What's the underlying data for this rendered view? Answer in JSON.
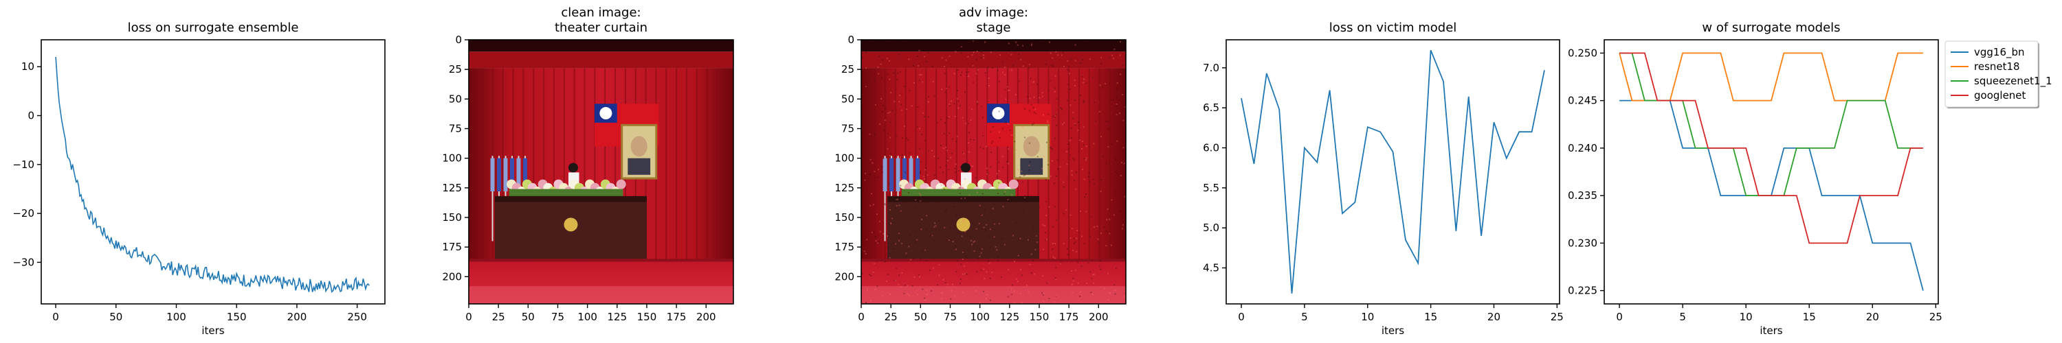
{
  "figure": {
    "panels": [
      {
        "id": "p1",
        "title": "loss on surrogate ensemble",
        "xlabel": "iters"
      },
      {
        "id": "p2",
        "title_line1": "clean image:",
        "title_line2": "theater curtain"
      },
      {
        "id": "p3",
        "title_line1": "adv image:",
        "title_line2": "stage"
      },
      {
        "id": "p4",
        "title": "loss on victim model",
        "xlabel": "iters"
      },
      {
        "id": "p5",
        "title": "w of surrogate models",
        "xlabel": "iters"
      }
    ]
  },
  "colors": {
    "vgg16_bn": "#1f77b4",
    "resnet18": "#ff7f0e",
    "squeezenet1_1": "#2ca02c",
    "googlenet": "#d62728",
    "curtain": "#b3121d",
    "curtain_dark": "#6e070d",
    "stage_floor": "#d8263a",
    "podium": "#4a1d1a"
  },
  "chart_data": [
    {
      "type": "line",
      "title": "loss on surrogate ensemble",
      "xlabel": "iters",
      "ylabel": "",
      "xlim": [
        -12,
        273
      ],
      "ylim": [
        -38.5,
        15.5
      ],
      "xticks": [
        0,
        50,
        100,
        150,
        200,
        250
      ],
      "yticks": [
        10,
        0,
        -10,
        -20,
        -30
      ],
      "series": [
        {
          "color": "#1f77b4",
          "trend": {
            "x_start": 0,
            "x_end": 260,
            "start": 12,
            "end": -35,
            "floor": -35.5,
            "decay": 33
          },
          "noise_amplitude": 1.4,
          "points": [
            [
              0,
              12
            ],
            [
              1,
              8.5
            ],
            [
              2,
              5
            ],
            [
              3,
              2.5
            ],
            [
              5,
              -1
            ],
            [
              8,
              -5
            ],
            [
              10,
              -8
            ],
            [
              15,
              -11.5
            ],
            [
              20,
              -15.5
            ],
            [
              25,
              -19
            ],
            [
              30,
              -21
            ],
            [
              40,
              -24
            ],
            [
              50,
              -26.5
            ],
            [
              60,
              -27.5
            ],
            [
              75,
              -29
            ],
            [
              100,
              -31.5
            ],
            [
              125,
              -32
            ],
            [
              150,
              -33.5
            ],
            [
              175,
              -34
            ],
            [
              200,
              -34.5
            ],
            [
              225,
              -35
            ],
            [
              255,
              -34
            ],
            [
              258,
              -35
            ],
            [
              260,
              -36
            ]
          ]
        }
      ]
    },
    {
      "type": "image",
      "title": "clean image:\ntheater curtain",
      "xticks": [
        0,
        25,
        50,
        75,
        100,
        125,
        150,
        175,
        200
      ],
      "yticks": [
        0,
        25,
        50,
        75,
        100,
        125,
        150,
        175,
        200
      ],
      "xlim": [
        0,
        223
      ],
      "ylim": [
        223,
        0
      ]
    },
    {
      "type": "image",
      "title": "adv image:\nstage",
      "xticks": [
        0,
        25,
        50,
        75,
        100,
        125,
        150,
        175,
        200
      ],
      "yticks": [
        0,
        25,
        50,
        75,
        100,
        125,
        150,
        175,
        200
      ],
      "xlim": [
        0,
        223
      ],
      "ylim": [
        223,
        0
      ]
    },
    {
      "type": "line",
      "title": "loss on victim model",
      "xlabel": "iters",
      "ylabel": "",
      "xlim": [
        -1.2,
        25.2
      ],
      "ylim": [
        4.05,
        7.35
      ],
      "xticks": [
        0,
        5,
        10,
        15,
        20,
        25
      ],
      "yticks": [
        4.5,
        5.0,
        5.5,
        6.0,
        6.5,
        7.0
      ],
      "series": [
        {
          "color": "#1f77b4",
          "x": [
            0,
            1,
            2,
            3,
            4,
            5,
            6,
            7,
            8,
            9,
            10,
            11,
            12,
            13,
            14,
            15,
            16,
            17,
            18,
            19,
            20,
            21,
            22,
            23,
            24
          ],
          "y": [
            6.62,
            5.8,
            6.93,
            6.48,
            4.18,
            6.0,
            5.82,
            6.72,
            5.18,
            5.32,
            6.26,
            6.2,
            5.95,
            4.85,
            4.56,
            7.22,
            6.83,
            4.96,
            6.64,
            4.9,
            6.32,
            5.87,
            6.2,
            6.2,
            6.97
          ]
        }
      ]
    },
    {
      "type": "line",
      "title": "w of surrogate models",
      "xlabel": "iters",
      "ylabel": "",
      "xlim": [
        -1.2,
        25.2
      ],
      "ylim": [
        0.2236,
        0.2514
      ],
      "xticks": [
        0,
        5,
        10,
        15,
        20,
        25
      ],
      "yticks": [
        0.225,
        0.23,
        0.235,
        0.24,
        0.245,
        0.25
      ],
      "legend": "outside upper right",
      "series": [
        {
          "name": "vgg16_bn",
          "color": "#1f77b4",
          "x": [
            0,
            1,
            2,
            3,
            4,
            5,
            6,
            7,
            8,
            9,
            10,
            11,
            12,
            13,
            14,
            15,
            16,
            17,
            18,
            19,
            20,
            21,
            22,
            23,
            24
          ],
          "y": [
            0.245,
            0.245,
            0.245,
            0.245,
            0.245,
            0.24,
            0.24,
            0.24,
            0.235,
            0.235,
            0.235,
            0.235,
            0.235,
            0.24,
            0.24,
            0.24,
            0.235,
            0.235,
            0.235,
            0.235,
            0.23,
            0.23,
            0.23,
            0.23,
            0.225
          ]
        },
        {
          "name": "resnet18",
          "color": "#ff7f0e",
          "x": [
            0,
            1,
            2,
            3,
            4,
            5,
            6,
            7,
            8,
            9,
            10,
            11,
            12,
            13,
            14,
            15,
            16,
            17,
            18,
            19,
            20,
            21,
            22,
            23,
            24
          ],
          "y": [
            0.25,
            0.245,
            0.245,
            0.245,
            0.245,
            0.25,
            0.25,
            0.25,
            0.25,
            0.245,
            0.245,
            0.245,
            0.245,
            0.25,
            0.25,
            0.25,
            0.25,
            0.245,
            0.245,
            0.245,
            0.245,
            0.245,
            0.25,
            0.25,
            0.25
          ]
        },
        {
          "name": "squeezenet1_1",
          "color": "#2ca02c",
          "x": [
            0,
            1,
            2,
            3,
            4,
            5,
            6,
            7,
            8,
            9,
            10,
            11,
            12,
            13,
            14,
            15,
            16,
            17,
            18,
            19,
            20,
            21,
            22,
            23,
            24
          ],
          "y": [
            0.25,
            0.25,
            0.245,
            0.245,
            0.245,
            0.245,
            0.24,
            0.24,
            0.24,
            0.24,
            0.235,
            0.235,
            0.235,
            0.235,
            0.24,
            0.24,
            0.24,
            0.24,
            0.245,
            0.245,
            0.245,
            0.245,
            0.24,
            0.24,
            0.24
          ]
        },
        {
          "name": "googlenet",
          "color": "#d62728",
          "x": [
            0,
            1,
            2,
            3,
            4,
            5,
            6,
            7,
            8,
            9,
            10,
            11,
            12,
            13,
            14,
            15,
            16,
            17,
            18,
            19,
            20,
            21,
            22,
            23,
            24
          ],
          "y": [
            0.25,
            0.25,
            0.25,
            0.245,
            0.245,
            0.245,
            0.245,
            0.24,
            0.24,
            0.24,
            0.24,
            0.235,
            0.235,
            0.235,
            0.235,
            0.23,
            0.23,
            0.23,
            0.23,
            0.235,
            0.235,
            0.235,
            0.235,
            0.24,
            0.24
          ]
        }
      ]
    }
  ]
}
